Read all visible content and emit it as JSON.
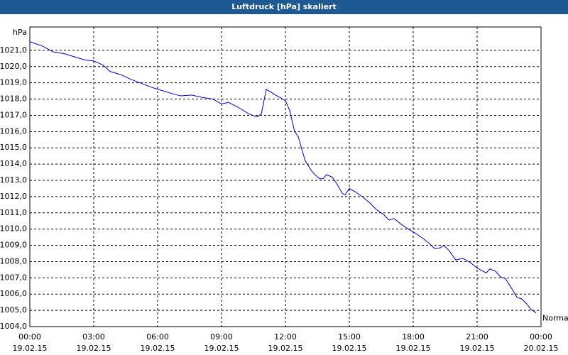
{
  "chart_data": {
    "type": "line",
    "title": "Luftdruck [hPa] skaliert",
    "y_label": "hPa",
    "x": [
      0,
      0.6,
      1.1,
      1.6,
      2.1,
      2.6,
      3.0,
      3.43,
      3.77,
      4.27,
      4.77,
      5.27,
      5.77,
      6.27,
      6.77,
      7.1,
      7.6,
      8.1,
      8.6,
      9.0,
      9.33,
      9.77,
      10.27,
      10.67,
      10.87,
      11.1,
      11.6,
      12.0,
      12.2,
      12.43,
      12.6,
      12.77,
      12.93,
      13.27,
      13.6,
      13.77,
      13.93,
      14.2,
      14.43,
      14.67,
      14.8,
      15.0,
      15.27,
      15.6,
      15.93,
      16.27,
      16.6,
      16.87,
      17.1,
      17.43,
      17.77,
      18.1,
      18.43,
      18.77,
      19.0,
      19.27,
      19.43,
      19.67,
      20.0,
      20.33,
      20.67,
      21.0,
      21.43,
      21.6,
      21.87,
      22.1,
      22.33,
      22.6,
      22.87,
      23.1,
      23.33,
      23.53,
      23.77
    ],
    "series": [
      {
        "name": "Normal",
        "color": "#0000cc",
        "values": [
          1021.53,
          1021.26,
          1020.9,
          1020.8,
          1020.6,
          1020.4,
          1020.35,
          1020.1,
          1019.7,
          1019.5,
          1019.2,
          1018.95,
          1018.7,
          1018.5,
          1018.3,
          1018.2,
          1018.25,
          1018.1,
          1018.0,
          1017.7,
          1017.8,
          1017.5,
          1017.1,
          1016.9,
          1017.1,
          1018.6,
          1018.2,
          1017.9,
          1017.3,
          1016.0,
          1015.7,
          1014.9,
          1014.2,
          1013.5,
          1013.1,
          1013.1,
          1013.35,
          1013.2,
          1012.75,
          1012.2,
          1012.1,
          1012.5,
          1012.3,
          1012.0,
          1011.65,
          1011.2,
          1010.9,
          1010.55,
          1010.65,
          1010.3,
          1010.0,
          1009.75,
          1009.45,
          1009.1,
          1008.8,
          1008.85,
          1009.0,
          1008.7,
          1008.1,
          1008.2,
          1007.95,
          1007.6,
          1007.3,
          1007.55,
          1007.4,
          1007.05,
          1006.95,
          1006.4,
          1005.8,
          1005.7,
          1005.4,
          1005.05,
          1004.85
        ]
      }
    ],
    "xlim": [
      0,
      24
    ],
    "xticks": [
      {
        "value": 0,
        "label": "00:00",
        "date": "19.02.15"
      },
      {
        "value": 3,
        "label": "03:00",
        "date": "19.02.15"
      },
      {
        "value": 6,
        "label": "06:00",
        "date": "19.02.15"
      },
      {
        "value": 9,
        "label": "09:00",
        "date": "19.02.15"
      },
      {
        "value": 12,
        "label": "12:00",
        "date": "19.02.15"
      },
      {
        "value": 15,
        "label": "15:00",
        "date": "19.02.15"
      },
      {
        "value": 18,
        "label": "18:00",
        "date": "19.02.15"
      },
      {
        "value": 21,
        "label": "21:00",
        "date": "19.02.15"
      },
      {
        "value": 24,
        "label": "00:00",
        "date": "20.02.15"
      }
    ],
    "ylim": [
      1004,
      1022
    ],
    "yticks": [
      {
        "value": 1004,
        "label": "1004,0"
      },
      {
        "value": 1005,
        "label": "1005,0"
      },
      {
        "value": 1006,
        "label": "1006,0"
      },
      {
        "value": 1007,
        "label": "1007,0"
      },
      {
        "value": 1008,
        "label": "1008,0"
      },
      {
        "value": 1009,
        "label": "1009,0"
      },
      {
        "value": 1010,
        "label": "1010,0"
      },
      {
        "value": 1011,
        "label": "1011,0"
      },
      {
        "value": 1012,
        "label": "1012,0"
      },
      {
        "value": 1013,
        "label": "1013,0"
      },
      {
        "value": 1014,
        "label": "1014,0"
      },
      {
        "value": 1015,
        "label": "1015,0"
      },
      {
        "value": 1016,
        "label": "1016,0"
      },
      {
        "value": 1017,
        "label": "1017,0"
      },
      {
        "value": 1018,
        "label": "1018,0"
      },
      {
        "value": 1019,
        "label": "1019,0"
      },
      {
        "value": 1020,
        "label": "1020,0"
      },
      {
        "value": 1021,
        "label": "1021,0"
      }
    ],
    "grid": true
  }
}
